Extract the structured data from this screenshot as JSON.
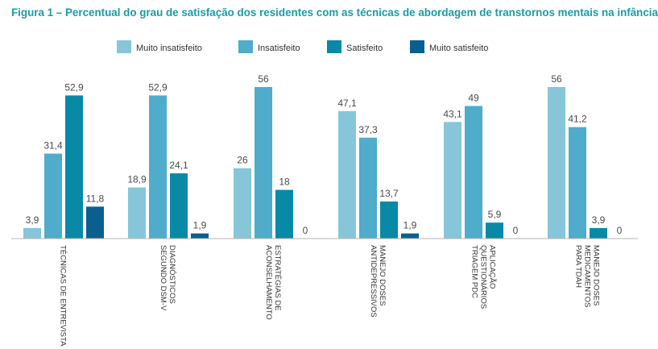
{
  "chart_data": {
    "type": "bar",
    "title": "Figura 1 – Percentual do grau de satisfação dos residentes com as técnicas de abordagem de transtornos mentais na infância",
    "categories": [
      [
        "TÉCNICAS DE ENTREVISTA"
      ],
      [
        "DIAGNÓSTICOS",
        "SEGUNDO DSM-V"
      ],
      [
        "ESTRATÉGIAS DE",
        "ACONSELHAMENTO"
      ],
      [
        "MANEJO DOSES",
        "ANTIDEPRESSIVOS"
      ],
      [
        "APLICAÇÃO",
        "QUESTIONÁRIOS",
        "TRIAGEM PDC"
      ],
      [
        "MANEJO DOSES",
        "MEDICAMENTOS",
        "PARA TDAH"
      ]
    ],
    "series": [
      {
        "name": "Muito insatisfeito",
        "color": "#86c6d8",
        "values": [
          3.9,
          18.9,
          26,
          47.1,
          43.1,
          56
        ]
      },
      {
        "name": "Insatisfeito",
        "color": "#4faccb",
        "values": [
          31.4,
          52.9,
          56,
          37.3,
          49,
          41.2
        ]
      },
      {
        "name": "Satisfeito",
        "color": "#0889a6",
        "values": [
          52.9,
          24.1,
          18,
          13.7,
          5.9,
          3.9
        ]
      },
      {
        "name": "Muito satisfeito",
        "color": "#0a5f8e",
        "values": [
          11.8,
          1.9,
          0,
          1.9,
          0,
          0
        ]
      }
    ],
    "value_labels": [
      [
        "3,9",
        "31,4",
        "52,9",
        "11,8"
      ],
      [
        "18,9",
        "52,9",
        "24,1",
        "1,9"
      ],
      [
        "26",
        "56",
        "18",
        "0"
      ],
      [
        "47,1",
        "37,3",
        "13,7",
        "1,9"
      ],
      [
        "43,1",
        "49",
        "5,9",
        "0"
      ],
      [
        "56",
        "41,2",
        "3,9",
        "0"
      ]
    ],
    "ylim": [
      0,
      56
    ],
    "legend": "top-center",
    "grid": false,
    "axis_color": "#b5b5b5",
    "title_color": "#1a9ba8"
  }
}
